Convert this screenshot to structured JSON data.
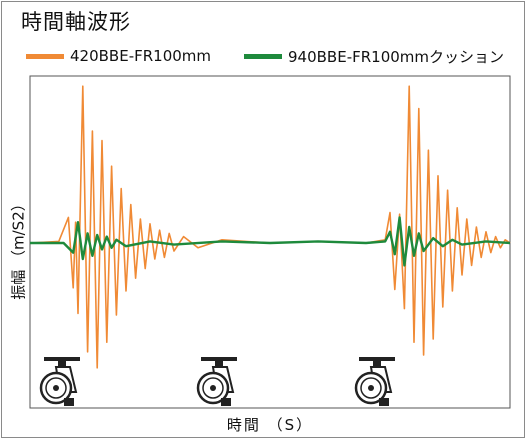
{
  "chart_data": {
    "type": "line",
    "title": "時間軸波形",
    "xlabel": "時間 （S）",
    "ylabel": "振幅 （m/S2）",
    "legend_placement": "top",
    "grid": false,
    "x_range": [
      0,
      1
    ],
    "y_range": [
      -1.05,
      1.05
    ],
    "series": [
      {
        "name": "420BBE-FR100mm",
        "color": "#f08a35",
        "x": [
          0,
          0.06,
          0.08,
          0.09,
          0.095,
          0.1,
          0.11,
          0.12,
          0.13,
          0.14,
          0.15,
          0.16,
          0.17,
          0.18,
          0.19,
          0.2,
          0.21,
          0.22,
          0.23,
          0.24,
          0.25,
          0.26,
          0.27,
          0.28,
          0.29,
          0.3,
          0.32,
          0.35,
          0.4,
          0.5,
          0.6,
          0.7,
          0.74,
          0.75,
          0.76,
          0.77,
          0.78,
          0.79,
          0.8,
          0.81,
          0.82,
          0.83,
          0.84,
          0.85,
          0.86,
          0.87,
          0.88,
          0.89,
          0.9,
          0.91,
          0.92,
          0.93,
          0.94,
          0.95,
          0.96,
          0.97,
          0.98,
          0.99,
          1.0
        ],
        "y": [
          0,
          0.01,
          0.16,
          -0.28,
          0.13,
          -0.44,
          0.98,
          -0.68,
          0.7,
          -0.78,
          0.64,
          -0.62,
          0.48,
          -0.45,
          0.34,
          -0.3,
          0.24,
          -0.22,
          0.15,
          -0.16,
          0.12,
          -0.1,
          0.08,
          -0.09,
          0.06,
          -0.05,
          0.04,
          -0.03,
          0.02,
          0.0,
          0.01,
          0.0,
          0.02,
          0.19,
          -0.29,
          0.18,
          -0.41,
          0.98,
          -0.62,
          0.84,
          -0.7,
          0.58,
          -0.6,
          0.42,
          -0.4,
          0.33,
          -0.3,
          0.22,
          -0.2,
          0.15,
          -0.14,
          0.1,
          -0.09,
          0.07,
          -0.06,
          0.04,
          -0.03,
          0.02,
          0.0
        ]
      },
      {
        "name": "940BBE-FR100mmクッション",
        "color": "#1e8a3c",
        "x": [
          0,
          0.07,
          0.09,
          0.1,
          0.11,
          0.12,
          0.13,
          0.14,
          0.15,
          0.16,
          0.17,
          0.18,
          0.2,
          0.25,
          0.3,
          0.4,
          0.5,
          0.6,
          0.7,
          0.74,
          0.75,
          0.76,
          0.77,
          0.78,
          0.79,
          0.8,
          0.81,
          0.82,
          0.84,
          0.86,
          0.88,
          0.9,
          0.95,
          1.0
        ],
        "y": [
          0,
          0.0,
          -0.06,
          0.13,
          -0.1,
          0.06,
          -0.08,
          0.05,
          -0.04,
          0.04,
          -0.03,
          0.02,
          -0.02,
          0.01,
          -0.01,
          0.01,
          0.0,
          0.01,
          0.0,
          0.01,
          0.07,
          -0.07,
          0.16,
          -0.14,
          0.1,
          -0.08,
          0.06,
          -0.05,
          0.03,
          -0.02,
          0.02,
          -0.01,
          0.01,
          0.0
        ]
      }
    ],
    "annotation_icons": [
      "caster-wheel-icon",
      "caster-wheel-icon",
      "caster-wheel-icon"
    ]
  }
}
